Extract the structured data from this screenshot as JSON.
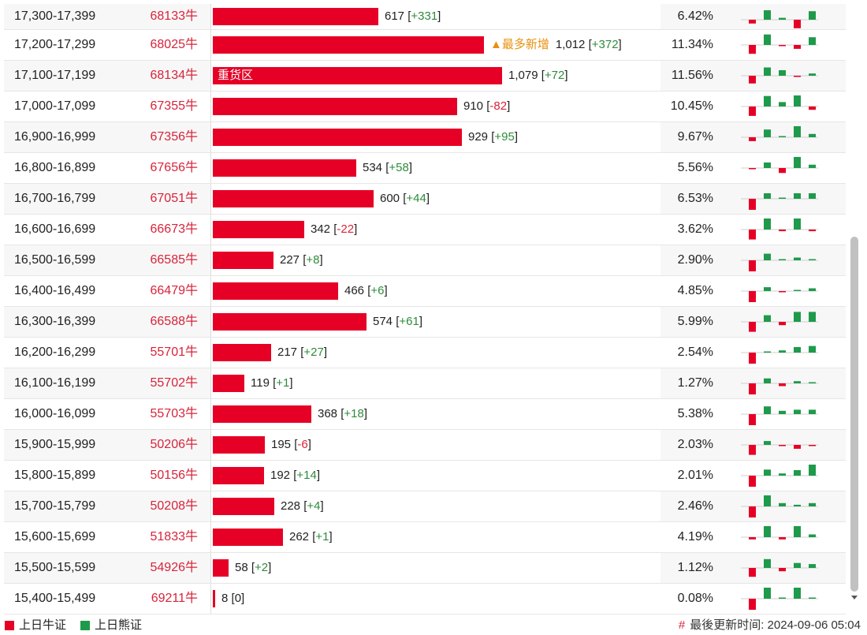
{
  "rows": [
    {
      "range": "17,300-17,399",
      "code": "68133牛",
      "count": "617",
      "change": "+331",
      "pct": "6.42%",
      "value": 617,
      "spark": [
        -0.4,
        1,
        0.2,
        -0.9,
        0.9
      ]
    },
    {
      "range": "17,200-17,299",
      "code": "68025牛",
      "count": "1,012",
      "change": "+372",
      "pct": "11.34%",
      "value": 1012,
      "tag": "▲最多新增",
      "spark": [
        -0.8,
        0.95,
        -0.1,
        -0.35,
        0.7
      ]
    },
    {
      "range": "17,100-17,199",
      "code": "68134牛",
      "count": "1,079",
      "change": "+72",
      "pct": "11.56%",
      "value": 1079,
      "label": "重货区",
      "spark": [
        -0.7,
        0.75,
        0.5,
        -0.1,
        0.2
      ]
    },
    {
      "range": "17,000-17,099",
      "code": "67355牛",
      "count": "910",
      "change": "-82",
      "pct": "10.45%",
      "value": 910,
      "spark": [
        -0.85,
        0.95,
        0.4,
        1,
        -0.3
      ]
    },
    {
      "range": "16,900-16,999",
      "code": "67356牛",
      "count": "929",
      "change": "+95",
      "pct": "9.67%",
      "value": 929,
      "spark": [
        -0.35,
        0.7,
        0.1,
        1,
        0.3
      ]
    },
    {
      "range": "16,800-16,899",
      "code": "67656牛",
      "count": "534",
      "change": "+58",
      "pct": "5.56%",
      "value": 534,
      "spark": [
        -0.05,
        0.5,
        -0.45,
        1,
        0.3
      ]
    },
    {
      "range": "16,700-16,799",
      "code": "67051牛",
      "count": "600",
      "change": "+44",
      "pct": "6.53%",
      "value": 600,
      "spark": [
        -1,
        0.5,
        0.1,
        0.5,
        0.5
      ]
    },
    {
      "range": "16,600-16,699",
      "code": "66673牛",
      "count": "342",
      "change": "-22",
      "pct": "3.62%",
      "value": 342,
      "spark": [
        -0.9,
        1,
        -0.15,
        1,
        -0.15
      ]
    },
    {
      "range": "16,500-16,599",
      "code": "66585牛",
      "count": "227",
      "change": "+8",
      "pct": "2.90%",
      "value": 227,
      "spark": [
        -1,
        0.6,
        0.1,
        0.25,
        0.1
      ]
    },
    {
      "range": "16,400-16,499",
      "code": "66479牛",
      "count": "466",
      "change": "+6",
      "pct": "4.85%",
      "value": 466,
      "spark": [
        -1,
        0.35,
        -0.05,
        0,
        0.25
      ]
    },
    {
      "range": "16,300-16,399",
      "code": "66588牛",
      "count": "574",
      "change": "+61",
      "pct": "5.99%",
      "value": 574,
      "spark": [
        -0.9,
        0.6,
        -0.3,
        0.9,
        0.9
      ]
    },
    {
      "range": "16,200-16,299",
      "code": "55701牛",
      "count": "217",
      "change": "+27",
      "pct": "2.54%",
      "value": 217,
      "spark": [
        -1,
        0.1,
        0.2,
        0.5,
        0.6
      ]
    },
    {
      "range": "16,100-16,199",
      "code": "55702牛",
      "count": "119",
      "change": "+1",
      "pct": "1.27%",
      "value": 119,
      "spark": [
        -1,
        0.45,
        -0.25,
        0.2,
        0
      ]
    },
    {
      "range": "16,000-16,099",
      "code": "55703牛",
      "count": "368",
      "change": "+18",
      "pct": "5.38%",
      "value": 368,
      "spark": [
        -1,
        0.7,
        0.3,
        0.4,
        0.4
      ]
    },
    {
      "range": "15,900-15,999",
      "code": "50206牛",
      "count": "195",
      "change": "-6",
      "pct": "2.03%",
      "value": 195,
      "spark": [
        -0.9,
        0.35,
        -0.05,
        -0.35,
        -0.1
      ]
    },
    {
      "range": "15,800-15,899",
      "code": "50156牛",
      "count": "192",
      "change": "+14",
      "pct": "2.01%",
      "value": 192,
      "spark": [
        -1,
        0.55,
        0.2,
        0.5,
        1
      ]
    },
    {
      "range": "15,700-15,799",
      "code": "50208牛",
      "count": "228",
      "change": "+4",
      "pct": "2.46%",
      "value": 228,
      "spark": [
        -1,
        1,
        0.3,
        0.15,
        0.3
      ]
    },
    {
      "range": "15,600-15,699",
      "code": "51833牛",
      "count": "262",
      "change": "+1",
      "pct": "4.19%",
      "value": 262,
      "spark": [
        -0.2,
        1,
        -0.2,
        1,
        0.25
      ]
    },
    {
      "range": "15,500-15,599",
      "code": "54926牛",
      "count": "58",
      "change": "+2",
      "pct": "1.12%",
      "value": 58,
      "spark": [
        -0.8,
        0.8,
        -0.3,
        0.45,
        0.35
      ]
    },
    {
      "range": "15,400-15,499",
      "code": "69211牛",
      "count": "8",
      "change": "0",
      "pct": "0.08%",
      "value": 8,
      "spark": [
        -1,
        1,
        0,
        1,
        0
      ]
    }
  ],
  "legend": {
    "bull_label": "上日牛证",
    "bear_label": "上日熊证",
    "bull_color": "#e60026",
    "bear_color": "#1e9a4b"
  },
  "footer": {
    "hash": "#",
    "updated_text": "最後更新时间: 2024-09-06 05:04"
  },
  "colors": {
    "bar": "#e60026",
    "positive": "#2e8b3a",
    "negative": "#d8233a"
  }
}
